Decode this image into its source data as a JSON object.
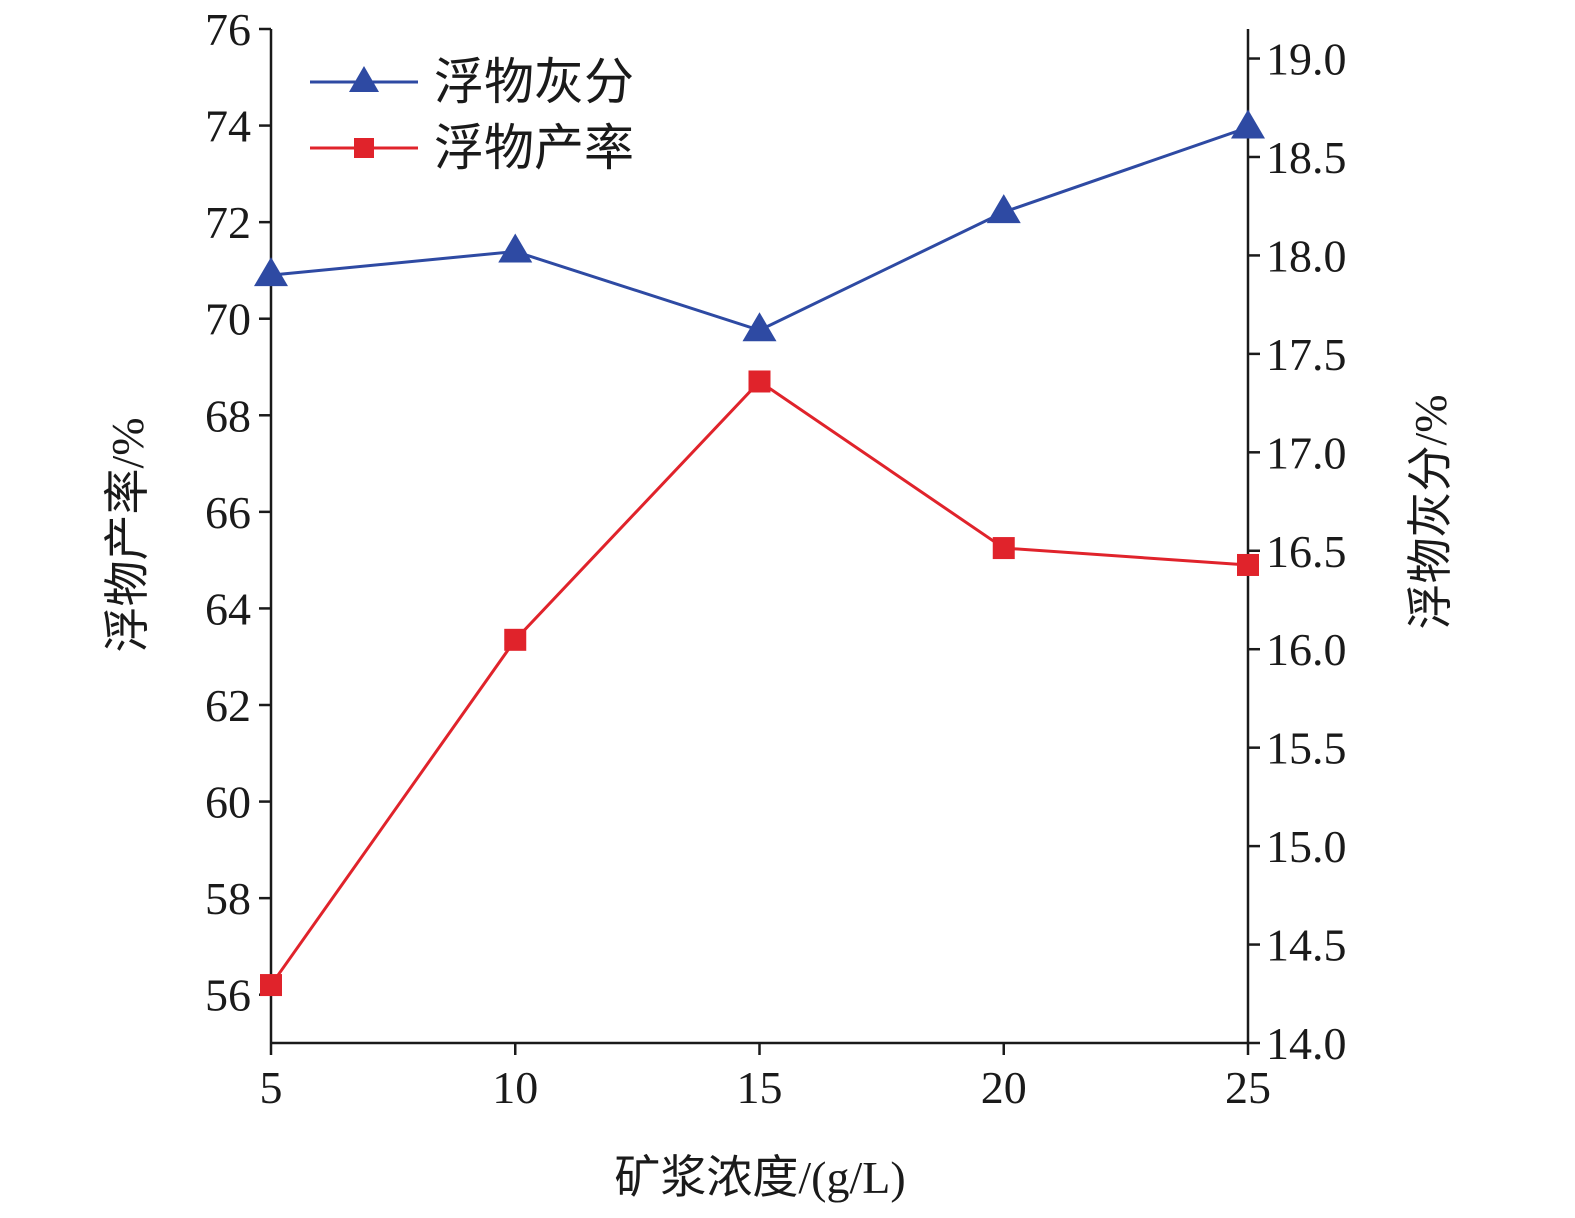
{
  "chart_data": {
    "type": "line",
    "xlabel": "矿浆浓度/(g/L)",
    "ylabel_left": "浮物产率/%",
    "ylabel_right": "浮物灰分/%",
    "x": [
      5,
      10,
      15,
      20,
      25
    ],
    "x_ticks": [
      "5",
      "10",
      "15",
      "20",
      "25"
    ],
    "xlim": [
      5,
      25
    ],
    "ylim_left": [
      55,
      76
    ],
    "ylim_right": [
      14.0,
      19.15
    ],
    "y_ticks_left": [
      "56",
      "58",
      "60",
      "62",
      "64",
      "66",
      "68",
      "70",
      "72",
      "74",
      "76"
    ],
    "y_ticks_right": [
      "14.0",
      "14.5",
      "15.0",
      "15.5",
      "16.0",
      "16.5",
      "17.0",
      "17.5",
      "18.0",
      "18.5",
      "19.0"
    ],
    "grid": false,
    "legend_position": "top-left",
    "series": [
      {
        "name": "浮物灰分",
        "axis": "right",
        "marker": "triangle",
        "color": "#2e4aa3",
        "values": [
          17.9,
          18.02,
          17.62,
          18.22,
          18.65
        ]
      },
      {
        "name": "浮物产率",
        "axis": "left",
        "marker": "square",
        "color": "#e0232b",
        "values": [
          56.2,
          63.35,
          68.7,
          65.25,
          64.9
        ]
      }
    ]
  }
}
